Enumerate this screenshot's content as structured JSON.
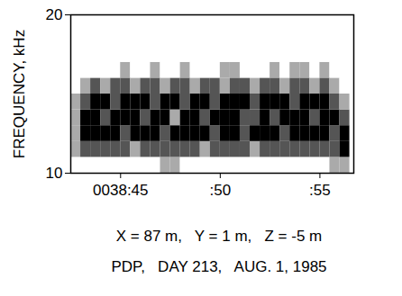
{
  "chart_data": {
    "type": "spectrogram",
    "y_label": "FREQUENCY, kHz",
    "annotations": [
      "X = 87 m,   Y = 1 m,   Z = -5 m",
      "PDP,   DAY 213,   AUG. 1, 1985"
    ],
    "xlim": [
      42.5,
      56.7
    ],
    "xticks": [
      {
        "value": 45,
        "label": "0038:45"
      },
      {
        "value": 50,
        "label": ":50"
      },
      {
        "value": 55,
        "label": ":55"
      }
    ],
    "ylim": [
      10,
      20
    ],
    "yticks": [
      10,
      20
    ],
    "color": "#000000",
    "time_edges": [
      42.5,
      43,
      43.5,
      44,
      44.5,
      45,
      45.5,
      46,
      46.5,
      47,
      47.5,
      48,
      48.5,
      49,
      49.5,
      50,
      50.5,
      51,
      51.5,
      52,
      52.5,
      53,
      53.5,
      54,
      54.5,
      55,
      55.5,
      56,
      56.5
    ],
    "frequency_edges": [
      10,
      11,
      12,
      13,
      14,
      15,
      16,
      17,
      18,
      19,
      20
    ],
    "intensity": [
      [
        0,
        0,
        0,
        0,
        0,
        0,
        0,
        0,
        0,
        1,
        1,
        0,
        0,
        0,
        0,
        0,
        0,
        0,
        0,
        0,
        0,
        0,
        0,
        0,
        0,
        0,
        1,
        1
      ],
      [
        1,
        2,
        2,
        2,
        2,
        2,
        1,
        2,
        2,
        2,
        2,
        2,
        2,
        1,
        2,
        2,
        2,
        2,
        1,
        2,
        2,
        2,
        2,
        2,
        2,
        2,
        2,
        3
      ],
      [
        1,
        3,
        3,
        3,
        3,
        2,
        3,
        3,
        3,
        2,
        3,
        3,
        3,
        3,
        2,
        3,
        3,
        2,
        3,
        3,
        3,
        2,
        3,
        3,
        3,
        3,
        2,
        3
      ],
      [
        1,
        3,
        3,
        2,
        3,
        3,
        3,
        2,
        3,
        3,
        1,
        3,
        3,
        2,
        3,
        3,
        3,
        2,
        2,
        3,
        2,
        3,
        3,
        3,
        2,
        3,
        3,
        2
      ],
      [
        1,
        2,
        3,
        3,
        2,
        3,
        3,
        3,
        2,
        3,
        3,
        2,
        3,
        3,
        2,
        3,
        3,
        3,
        2,
        3,
        3,
        3,
        2,
        3,
        3,
        3,
        2,
        1
      ],
      [
        0,
        1,
        2,
        1,
        2,
        2,
        1,
        2,
        2,
        1,
        2,
        2,
        1,
        2,
        2,
        1,
        2,
        2,
        1,
        2,
        2,
        1,
        2,
        2,
        1,
        2,
        1,
        0
      ],
      [
        0,
        0,
        0,
        0,
        0,
        1,
        0,
        0,
        1,
        0,
        0,
        1,
        0,
        0,
        0,
        1,
        1,
        0,
        0,
        0,
        1,
        0,
        1,
        1,
        0,
        1,
        0,
        0
      ],
      [
        0,
        0,
        0,
        0,
        0,
        0,
        0,
        0,
        0,
        0,
        0,
        0,
        0,
        0,
        0,
        0,
        0,
        0,
        0,
        0,
        0,
        0,
        0,
        0,
        0,
        0,
        0,
        0
      ],
      [
        0,
        0,
        0,
        0,
        0,
        0,
        0,
        0,
        0,
        0,
        0,
        0,
        0,
        0,
        0,
        0,
        0,
        0,
        0,
        0,
        0,
        0,
        0,
        0,
        0,
        0,
        0,
        0
      ],
      [
        0,
        0,
        0,
        0,
        0,
        0,
        0,
        0,
        0,
        0,
        0,
        0,
        0,
        0,
        0,
        0,
        0,
        0,
        0,
        0,
        0,
        0,
        0,
        0,
        0,
        0,
        0,
        0
      ]
    ]
  }
}
